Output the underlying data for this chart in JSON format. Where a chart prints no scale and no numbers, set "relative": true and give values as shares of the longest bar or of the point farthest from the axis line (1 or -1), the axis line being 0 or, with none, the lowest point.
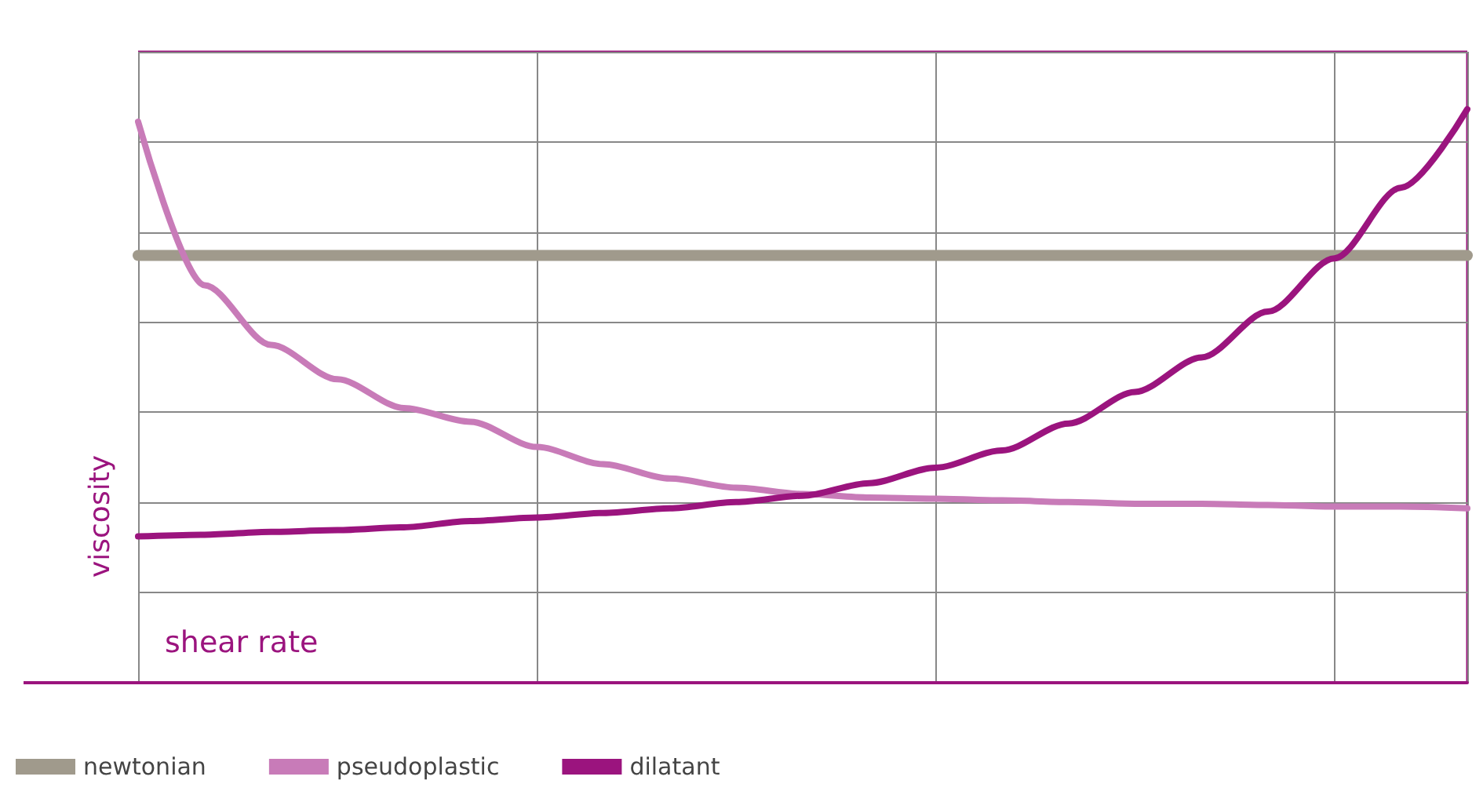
{
  "chart_data": {
    "type": "line",
    "relative": true,
    "xlabel": "shear rate",
    "ylabel": "viscosity",
    "grid": true,
    "legend": "bottom",
    "marker": "none",
    "line_style": "solid",
    "categories": [
      null,
      null,
      null,
      null,
      null,
      null,
      null,
      null,
      null,
      null,
      null,
      null,
      null,
      null,
      null,
      null,
      null,
      null,
      null,
      null,
      null
    ],
    "series": [
      {
        "name": "newtonian",
        "color": "#a09a8c",
        "values": [
          0.745,
          0.745,
          0.745,
          0.745,
          0.745,
          0.745,
          0.745,
          0.745,
          0.745,
          0.745,
          0.745,
          0.745,
          0.745,
          0.745,
          0.745,
          0.745,
          0.745,
          0.745,
          0.745,
          0.745,
          0.745
        ]
      },
      {
        "name": "pseudoplastic",
        "color": "#c87bb8",
        "values": [
          0.978,
          0.693,
          0.589,
          0.529,
          0.479,
          0.455,
          0.411,
          0.381,
          0.356,
          0.34,
          0.329,
          0.323,
          0.321,
          0.318,
          0.315,
          0.312,
          0.312,
          0.31,
          0.307,
          0.307,
          0.304
        ]
      },
      {
        "name": "dilatant",
        "color": "#9b147e",
        "values": [
          0.255,
          0.258,
          0.263,
          0.266,
          0.271,
          0.282,
          0.288,
          0.296,
          0.304,
          0.315,
          0.326,
          0.348,
          0.375,
          0.405,
          0.452,
          0.507,
          0.567,
          0.647,
          0.74,
          0.863,
          1
        ]
      }
    ]
  }
}
